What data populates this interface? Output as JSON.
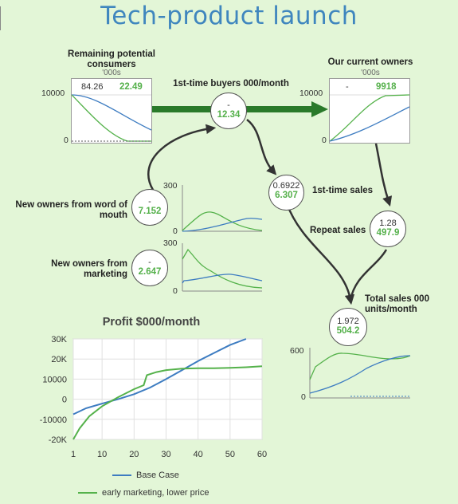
{
  "title": "Tech-product launch",
  "stocks": {
    "remaining": {
      "label": "Remaining potential consumers",
      "units": "'000s",
      "val1": "84.26",
      "val2": "22.49",
      "ytop": "10000",
      "yzero": "0"
    },
    "owners": {
      "label": "Our current owners",
      "units": "'000s",
      "val1": "-",
      "val2": "9918",
      "ytop": "10000",
      "yzero": "0"
    }
  },
  "flows": {
    "buyers": {
      "label": "1st-time buyers 000/month",
      "val1": "-",
      "val2": "12.34"
    },
    "first_sales": {
      "label": "1st-time sales",
      "val1": "0.6922",
      "val2": "6.307"
    },
    "repeat": {
      "label": "Repeat sales",
      "val1": "1.28",
      "val2": "497.9"
    },
    "total": {
      "label": "Total sales 000 units/month",
      "val1": "1.972",
      "val2": "504.2"
    },
    "wom": {
      "label": "New owners from word of mouth",
      "val1": "-",
      "val2": "7.152"
    },
    "mkt": {
      "label": "New owners from marketing",
      "val1": "-",
      "val2": "2.647"
    }
  },
  "mini_charts": {
    "wom": {
      "ytop": "300",
      "yzero": "0"
    },
    "mkt": {
      "ytop": "300",
      "yzero": "0"
    },
    "sales": {
      "ytop": "600",
      "yzero": "0"
    }
  },
  "colors": {
    "base": "#3d7cc1",
    "scenario": "#55b24b",
    "flow": "#2a7a2a"
  },
  "chart_data": {
    "type": "line",
    "title": "Profit $000/month",
    "xlabel": "",
    "ylabel": "",
    "x_ticks": [
      "1",
      "10",
      "20",
      "30",
      "40",
      "50",
      "60"
    ],
    "y_ticks": [
      "30K",
      "20K",
      "10000",
      "0",
      "-10000",
      "-20K"
    ],
    "xlim": [
      1,
      60
    ],
    "ylim": [
      -20000,
      30000
    ],
    "grid": true,
    "legend_position": "bottom",
    "series": [
      {
        "name": "Base Case",
        "color": "#3d7cc1",
        "x": [
          1,
          5,
          10,
          15,
          20,
          25,
          30,
          35,
          40,
          45,
          50,
          55
        ],
        "y": [
          -7500,
          -4500,
          -2200,
          0,
          2500,
          5800,
          10000,
          14500,
          19000,
          23000,
          27000,
          30500
        ]
      },
      {
        "name": "early marketing, lower price",
        "color": "#55b24b",
        "x": [
          1,
          3,
          6,
          10,
          15,
          20,
          23,
          24,
          27,
          30,
          35,
          40,
          45,
          50,
          55,
          60
        ],
        "y": [
          -20000,
          -14500,
          -8500,
          -3500,
          1000,
          5000,
          7000,
          12000,
          13500,
          14500,
          15200,
          15400,
          15400,
          15600,
          15900,
          16400
        ]
      }
    ]
  }
}
